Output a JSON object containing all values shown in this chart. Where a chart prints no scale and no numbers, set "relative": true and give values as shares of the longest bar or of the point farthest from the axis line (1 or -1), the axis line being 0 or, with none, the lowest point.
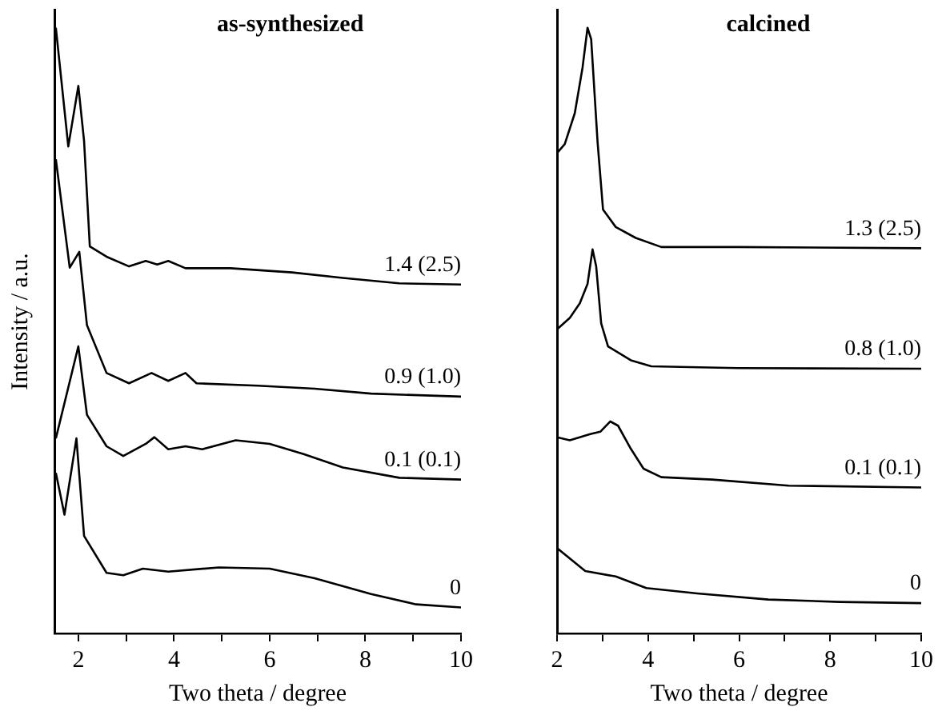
{
  "chart_data": [
    {
      "type": "line",
      "title": "as-synthesized",
      "xlabel": "Two theta / degree",
      "ylabel": "Intensity / a.u.",
      "xlim": [
        1.5,
        10
      ],
      "xticks": [
        2,
        {
          "value": 3,
          "label": null
        },
        4,
        {
          "value": 5,
          "label": null
        },
        6,
        {
          "value": 7,
          "label": null
        },
        8,
        {
          "value": 9,
          "label": null
        },
        10
      ],
      "relative": true,
      "tick_labels": "x",
      "grid": false,
      "legend": false,
      "marker": "none",
      "line_style": "solid",
      "series": [
        {
          "name": "0",
          "color": "#000000",
          "x": [
            1.53,
            1.71,
            1.96,
            2.12,
            2.59,
            2.94,
            3.35,
            3.88,
            4.94,
            6,
            6.94,
            8.12,
            9.06,
            10
          ],
          "values": [
            0.265,
            0.196,
            0.322,
            0.161,
            0.1,
            0.096,
            0.107,
            0.102,
            0.109,
            0.107,
            0.091,
            0.065,
            0.048,
            0.043
          ]
        },
        {
          "name": "0.1 (0.1)",
          "color": "#000000",
          "x": [
            1.53,
            2,
            2.18,
            2.59,
            2.94,
            3.41,
            3.59,
            3.88,
            4.24,
            4.59,
            5.29,
            6,
            6.71,
            7.53,
            8.71,
            10
          ],
          "values": [
            0.322,
            0.474,
            0.361,
            0.309,
            0.293,
            0.313,
            0.324,
            0.304,
            0.309,
            0.304,
            0.319,
            0.313,
            0.296,
            0.274,
            0.257,
            0.254
          ]
        },
        {
          "name": "0.9 (1.0)",
          "color": "#000000",
          "x": [
            1.53,
            1.82,
            2.02,
            2.18,
            2.59,
            3.06,
            3.53,
            3.88,
            4.24,
            4.47,
            5.76,
            6.94,
            8.12,
            10
          ],
          "values": [
            0.783,
            0.604,
            0.63,
            0.509,
            0.43,
            0.413,
            0.43,
            0.417,
            0.43,
            0.413,
            0.409,
            0.404,
            0.396,
            0.391
          ]
        },
        {
          "name": "1.4 (2.5)",
          "color": "#000000",
          "x": [
            1.53,
            1.79,
            2,
            2.12,
            2.24,
            2.59,
            3.06,
            3.41,
            3.65,
            3.88,
            4.24,
            5.18,
            6.47,
            7.53,
            8.71,
            10
          ],
          "values": [
            1,
            0.804,
            0.904,
            0.813,
            0.639,
            0.622,
            0.606,
            0.615,
            0.609,
            0.615,
            0.603,
            0.603,
            0.596,
            0.587,
            0.578,
            0.576
          ]
        }
      ]
    },
    {
      "type": "line",
      "title": "calcined",
      "xlabel": "Two theta / degree",
      "xlim": [
        2,
        10
      ],
      "xticks": [
        2,
        {
          "value": 3,
          "label": null
        },
        4,
        {
          "value": 5,
          "label": null
        },
        6,
        {
          "value": 7,
          "label": null
        },
        8,
        {
          "value": 9,
          "label": null
        },
        10
      ],
      "relative": true,
      "tick_labels": "x",
      "grid": false,
      "legend": false,
      "marker": "none",
      "line_style": "solid",
      "series": [
        {
          "name": "0",
          "color": "#000000",
          "x": [
            2,
            2.62,
            3.29,
            3.96,
            5.08,
            6.64,
            8.21,
            10
          ],
          "values": [
            0.141,
            0.103,
            0.094,
            0.075,
            0.066,
            0.056,
            0.052,
            0.05
          ]
        },
        {
          "name": "0.1 (0.1)",
          "color": "#000000",
          "x": [
            2,
            2.28,
            2.73,
            2.95,
            3.17,
            3.34,
            3.62,
            3.9,
            4.29,
            5.41,
            7.09,
            10
          ],
          "values": [
            0.324,
            0.319,
            0.329,
            0.333,
            0.35,
            0.343,
            0.305,
            0.272,
            0.258,
            0.254,
            0.244,
            0.241
          ]
        },
        {
          "name": "0.8 (1.0)",
          "color": "#000000",
          "x": [
            2,
            2.28,
            2.5,
            2.67,
            2.78,
            2.86,
            2.97,
            3.12,
            3.62,
            4.07,
            5.97,
            10
          ],
          "values": [
            0.502,
            0.521,
            0.545,
            0.577,
            0.634,
            0.606,
            0.512,
            0.474,
            0.451,
            0.441,
            0.438,
            0.437
          ]
        },
        {
          "name": "1.3 (2.5)",
          "color": "#000000",
          "x": [
            2,
            2.17,
            2.39,
            2.56,
            2.67,
            2.75,
            2.89,
            3.01,
            3.29,
            3.73,
            4.29,
            5.97,
            10
          ],
          "values": [
            0.793,
            0.808,
            0.859,
            0.934,
            1,
            0.981,
            0.812,
            0.7,
            0.671,
            0.653,
            0.638,
            0.638,
            0.636
          ]
        }
      ]
    }
  ]
}
